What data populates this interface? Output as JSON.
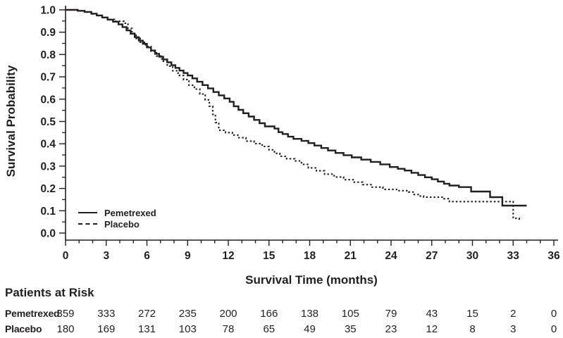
{
  "colors": {
    "ink": "#231f20",
    "background": "#ffffff"
  },
  "chart_data": {
    "type": "line",
    "subtype": "kaplan-meier-step",
    "title": "",
    "xlabel": "Survival Time (months)",
    "ylabel": "Survival Probability",
    "xlim": [
      0,
      36
    ],
    "ylim": [
      0.0,
      1.0
    ],
    "x_major_ticks": [
      0,
      3,
      6,
      9,
      12,
      15,
      18,
      21,
      24,
      27,
      30,
      33,
      36
    ],
    "x_minor_step": 1,
    "y_major_ticks": [
      "1.0",
      "0.9",
      "0.8",
      "0.7",
      "0.6",
      "0.5",
      "0.4",
      "0.3",
      "0.2",
      "0.1",
      "0.0"
    ],
    "y_minor_step": 0.05,
    "grid": false,
    "legend": {
      "position": "inside-lower-left"
    },
    "series": [
      {
        "name": "Pemetrexed",
        "style": "solid",
        "points": [
          [
            0,
            1.0
          ],
          [
            0.9,
            0.996
          ],
          [
            1.4,
            0.991
          ],
          [
            1.9,
            0.983
          ],
          [
            2.3,
            0.975
          ],
          [
            2.7,
            0.966
          ],
          [
            3.1,
            0.956
          ],
          [
            3.5,
            0.947
          ],
          [
            3.9,
            0.935
          ],
          [
            4.2,
            0.923
          ],
          [
            4.5,
            0.908
          ],
          [
            4.8,
            0.893
          ],
          [
            5.1,
            0.878
          ],
          [
            5.4,
            0.862
          ],
          [
            5.7,
            0.848
          ],
          [
            6.0,
            0.832
          ],
          [
            6.3,
            0.818
          ],
          [
            6.6,
            0.803
          ],
          [
            6.9,
            0.79
          ],
          [
            7.2,
            0.778
          ],
          [
            7.5,
            0.765
          ],
          [
            7.8,
            0.752
          ],
          [
            8.1,
            0.74
          ],
          [
            8.4,
            0.728
          ],
          [
            8.7,
            0.717
          ],
          [
            9.0,
            0.706
          ],
          [
            9.35,
            0.693
          ],
          [
            9.7,
            0.678
          ],
          [
            10.1,
            0.663
          ],
          [
            10.5,
            0.648
          ],
          [
            10.9,
            0.632
          ],
          [
            11.3,
            0.617
          ],
          [
            11.7,
            0.603
          ],
          [
            12.1,
            0.588
          ],
          [
            12.4,
            0.568
          ],
          [
            12.75,
            0.552
          ],
          [
            13.1,
            0.537
          ],
          [
            13.5,
            0.522
          ],
          [
            13.9,
            0.507
          ],
          [
            14.3,
            0.492
          ],
          [
            14.7,
            0.478
          ],
          [
            15.4,
            0.468
          ],
          [
            15.7,
            0.452
          ],
          [
            16.0,
            0.444
          ],
          [
            16.4,
            0.432
          ],
          [
            16.8,
            0.422
          ],
          [
            17.4,
            0.413
          ],
          [
            17.9,
            0.403
          ],
          [
            18.35,
            0.392
          ],
          [
            18.85,
            0.381
          ],
          [
            19.35,
            0.37
          ],
          [
            19.9,
            0.359
          ],
          [
            20.5,
            0.349
          ],
          [
            21.1,
            0.339
          ],
          [
            21.8,
            0.329
          ],
          [
            22.5,
            0.319
          ],
          [
            23.2,
            0.308
          ],
          [
            23.9,
            0.296
          ],
          [
            24.5,
            0.288
          ],
          [
            25.0,
            0.28
          ],
          [
            25.5,
            0.27
          ],
          [
            26.0,
            0.26
          ],
          [
            26.5,
            0.25
          ],
          [
            27.0,
            0.241
          ],
          [
            27.45,
            0.231
          ],
          [
            27.9,
            0.221
          ],
          [
            28.3,
            0.213
          ],
          [
            29.0,
            0.206
          ],
          [
            29.9,
            0.186
          ],
          [
            31.3,
            0.161
          ],
          [
            32.2,
            0.123
          ],
          [
            34.0,
            0.123
          ]
        ]
      },
      {
        "name": "Placebo",
        "style": "dashed",
        "points": [
          [
            0,
            1.0
          ],
          [
            0.9,
            0.995
          ],
          [
            1.4,
            0.99
          ],
          [
            1.9,
            0.982
          ],
          [
            2.3,
            0.974
          ],
          [
            2.7,
            0.965
          ],
          [
            3.1,
            0.957
          ],
          [
            3.6,
            0.949
          ],
          [
            4.3,
            0.94
          ],
          [
            4.6,
            0.917
          ],
          [
            4.9,
            0.895
          ],
          [
            5.2,
            0.872
          ],
          [
            5.5,
            0.855
          ],
          [
            5.9,
            0.836
          ],
          [
            6.3,
            0.815
          ],
          [
            6.7,
            0.793
          ],
          [
            7.1,
            0.77
          ],
          [
            7.5,
            0.748
          ],
          [
            7.9,
            0.727
          ],
          [
            8.3,
            0.706
          ],
          [
            8.7,
            0.688
          ],
          [
            9.1,
            0.662
          ],
          [
            9.5,
            0.645
          ],
          [
            9.9,
            0.623
          ],
          [
            10.3,
            0.597
          ],
          [
            10.6,
            0.568
          ],
          [
            10.85,
            0.532
          ],
          [
            11.05,
            0.495
          ],
          [
            11.3,
            0.461
          ],
          [
            11.8,
            0.45
          ],
          [
            12.3,
            0.439
          ],
          [
            12.7,
            0.427
          ],
          [
            13.3,
            0.412
          ],
          [
            13.9,
            0.401
          ],
          [
            14.5,
            0.388
          ],
          [
            15.0,
            0.373
          ],
          [
            15.4,
            0.357
          ],
          [
            15.8,
            0.344
          ],
          [
            16.3,
            0.333
          ],
          [
            16.9,
            0.323
          ],
          [
            17.4,
            0.308
          ],
          [
            17.9,
            0.292
          ],
          [
            18.5,
            0.279
          ],
          [
            19.1,
            0.264
          ],
          [
            19.8,
            0.251
          ],
          [
            20.5,
            0.239
          ],
          [
            21.2,
            0.228
          ],
          [
            21.9,
            0.217
          ],
          [
            22.6,
            0.206
          ],
          [
            23.4,
            0.196
          ],
          [
            24.4,
            0.19
          ],
          [
            25.3,
            0.184
          ],
          [
            25.7,
            0.173
          ],
          [
            26.0,
            0.166
          ],
          [
            26.4,
            0.161
          ],
          [
            27.9,
            0.154
          ],
          [
            28.3,
            0.141
          ],
          [
            33.0,
            0.066
          ],
          [
            33.45,
            0.058
          ]
        ]
      }
    ]
  },
  "risk_table": {
    "heading": "Patients at Risk",
    "timepoints": [
      0,
      3,
      6,
      9,
      12,
      15,
      18,
      21,
      24,
      27,
      30,
      33,
      36
    ],
    "rows": [
      {
        "label": "Pemetrexed",
        "values": [
          "359",
          "333",
          "272",
          "235",
          "200",
          "166",
          "138",
          "105",
          "79",
          "43",
          "15",
          "2",
          "0"
        ]
      },
      {
        "label": "Placebo",
        "values": [
          "180",
          "169",
          "131",
          "103",
          "78",
          "65",
          "49",
          "35",
          "23",
          "12",
          "8",
          "3",
          "0"
        ]
      }
    ]
  }
}
